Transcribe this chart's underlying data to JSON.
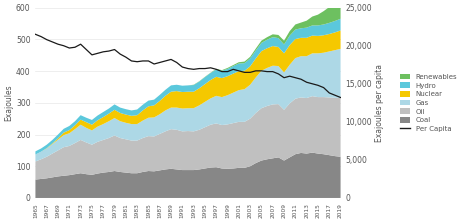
{
  "years": [
    1965,
    1966,
    1967,
    1968,
    1969,
    1970,
    1971,
    1972,
    1973,
    1974,
    1975,
    1976,
    1977,
    1978,
    1979,
    1980,
    1981,
    1982,
    1983,
    1984,
    1985,
    1986,
    1987,
    1988,
    1989,
    1990,
    1991,
    1992,
    1993,
    1994,
    1995,
    1996,
    1997,
    1998,
    1999,
    2000,
    2001,
    2002,
    2003,
    2004,
    2005,
    2006,
    2007,
    2008,
    2009,
    2010,
    2011,
    2012,
    2013,
    2014,
    2015,
    2016,
    2017,
    2018,
    2019
  ],
  "coal": [
    58,
    60,
    62,
    65,
    68,
    70,
    72,
    75,
    78,
    75,
    73,
    77,
    80,
    82,
    85,
    82,
    80,
    78,
    78,
    82,
    85,
    84,
    87,
    90,
    92,
    90,
    88,
    88,
    88,
    90,
    93,
    96,
    97,
    93,
    92,
    93,
    95,
    95,
    100,
    110,
    118,
    122,
    125,
    128,
    118,
    128,
    138,
    142,
    140,
    143,
    140,
    138,
    135,
    132,
    130
  ],
  "oil": [
    57,
    62,
    68,
    75,
    82,
    90,
    92,
    98,
    105,
    100,
    95,
    100,
    103,
    107,
    112,
    107,
    105,
    103,
    103,
    107,
    110,
    110,
    115,
    120,
    125,
    125,
    122,
    123,
    122,
    125,
    130,
    135,
    138,
    137,
    140,
    143,
    145,
    145,
    150,
    158,
    165,
    168,
    170,
    168,
    160,
    170,
    175,
    175,
    175,
    178,
    178,
    180,
    182,
    184,
    185
  ],
  "gas": [
    22,
    24,
    26,
    30,
    34,
    38,
    40,
    44,
    48,
    46,
    45,
    48,
    50,
    53,
    55,
    53,
    52,
    52,
    52,
    55,
    58,
    60,
    62,
    66,
    68,
    70,
    72,
    72,
    73,
    77,
    80,
    83,
    87,
    88,
    92,
    96,
    100,
    103,
    107,
    112,
    118,
    120,
    122,
    120,
    118,
    122,
    128,
    130,
    132,
    135,
    138,
    140,
    145,
    150,
    155
  ],
  "nuclear": [
    0,
    0,
    1,
    2,
    4,
    8,
    10,
    12,
    16,
    18,
    18,
    20,
    22,
    24,
    26,
    26,
    26,
    26,
    28,
    32,
    36,
    38,
    42,
    46,
    50,
    52,
    52,
    52,
    52,
    54,
    56,
    58,
    60,
    60,
    60,
    60,
    60,
    58,
    58,
    60,
    62,
    62,
    62,
    60,
    60,
    62,
    60,
    58,
    58,
    56,
    55,
    55,
    55,
    56,
    58
  ],
  "hydro": [
    10,
    10,
    11,
    11,
    12,
    12,
    13,
    13,
    14,
    14,
    15,
    15,
    16,
    16,
    17,
    17,
    17,
    17,
    18,
    18,
    18,
    18,
    19,
    19,
    20,
    20,
    20,
    20,
    21,
    21,
    22,
    22,
    23,
    23,
    23,
    24,
    24,
    24,
    25,
    25,
    26,
    27,
    28,
    28,
    28,
    30,
    30,
    30,
    32,
    32,
    33,
    34,
    35,
    36,
    37
  ],
  "renewables": [
    0,
    0,
    0,
    0,
    0,
    0,
    0,
    0,
    0,
    0,
    0,
    0,
    0,
    0,
    0,
    0,
    0,
    0,
    0,
    0,
    0,
    0,
    0,
    0,
    0,
    0,
    0,
    0,
    1,
    1,
    1,
    1,
    2,
    2,
    3,
    3,
    4,
    5,
    5,
    6,
    7,
    8,
    9,
    10,
    12,
    14,
    16,
    18,
    22,
    28,
    34,
    42,
    50,
    58,
    65
  ],
  "per_capita": [
    21500,
    21200,
    20800,
    20500,
    20200,
    20000,
    19700,
    19800,
    20200,
    19500,
    18800,
    19000,
    19200,
    19300,
    19500,
    18900,
    18500,
    18000,
    17900,
    18000,
    18000,
    17600,
    17800,
    18000,
    18200,
    17800,
    17200,
    17000,
    16900,
    17000,
    17000,
    17100,
    16900,
    16600,
    16600,
    16900,
    16700,
    16500,
    16500,
    16700,
    16700,
    16600,
    16600,
    16300,
    15800,
    16000,
    15800,
    15600,
    15200,
    15000,
    14800,
    14500,
    13800,
    13500,
    13200
  ],
  "colors": {
    "coal": "#878787",
    "oil": "#c0c0c0",
    "gas": "#add8e6",
    "nuclear": "#f5c800",
    "hydro": "#5bc8dc",
    "renewables": "#6dc060",
    "per_capita": "#1a1a1a"
  },
  "ylabel_left": "Exajoules",
  "ylabel_right": "Exajoules per capita",
  "ylim_left": [
    0,
    600
  ],
  "ylim_right": [
    0,
    25000
  ],
  "yticks_left": [
    0,
    100,
    200,
    300,
    400,
    500,
    600
  ],
  "yticks_right": [
    0,
    5000,
    10000,
    15000,
    20000,
    25000
  ],
  "background_color": "#ffffff",
  "grid_color": "#e8e8e8"
}
